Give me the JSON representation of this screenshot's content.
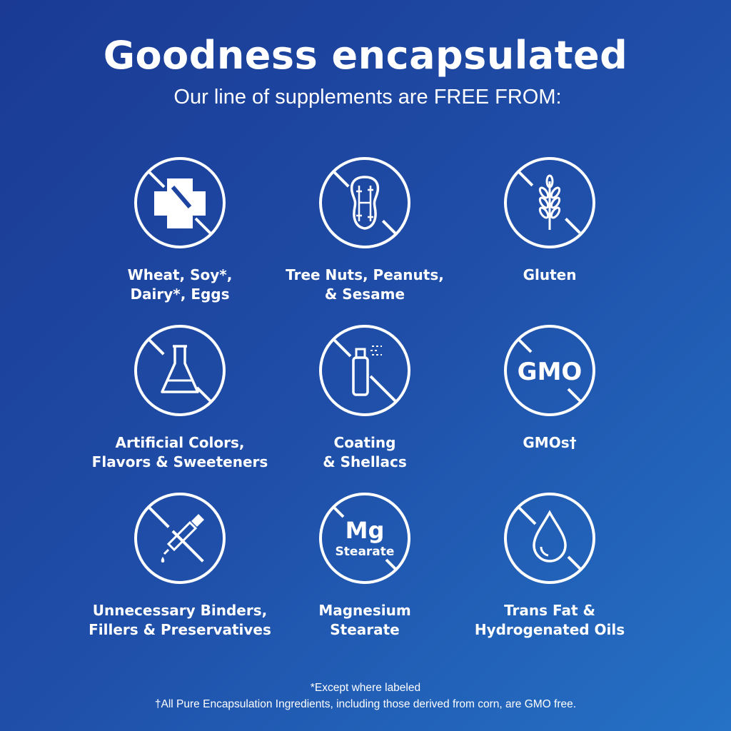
{
  "header": {
    "title": "Goodness encapsulated",
    "subtitle": "Our line of supplements are FREE FROM:"
  },
  "items": [
    {
      "icon": "allergen-cross-fork-icon",
      "label": "Wheat, Soy*,\nDairy*, Eggs"
    },
    {
      "icon": "peanut-icon",
      "label": "Tree Nuts, Peanuts,\n& Sesame"
    },
    {
      "icon": "wheat-icon",
      "label": "Gluten"
    },
    {
      "icon": "flask-icon",
      "label": "Artificial Colors,\nFlavors & Sweeteners"
    },
    {
      "icon": "spray-can-icon",
      "label": "Coating\n& Shellacs"
    },
    {
      "icon": "gmo-icon",
      "icon_text": "GMO",
      "label": "GMOs†"
    },
    {
      "icon": "dropper-icon",
      "label": "Unnecessary Binders,\nFillers & Preservatives"
    },
    {
      "icon": "mg-stearate-icon",
      "icon_text": "Mg",
      "icon_subtext": "Stearate",
      "label": "Magnesium\nStearate"
    },
    {
      "icon": "oil-drop-icon",
      "label": "Trans Fat &\nHydrogenated Oils"
    }
  ],
  "footnotes": [
    "*Except where labeled",
    "†All Pure Encapsulation Ingredients, including those derived from corn, are GMO free."
  ],
  "colors": {
    "background_start": "#1a3a94",
    "background_end": "#2572c6",
    "foreground": "#ffffff"
  }
}
